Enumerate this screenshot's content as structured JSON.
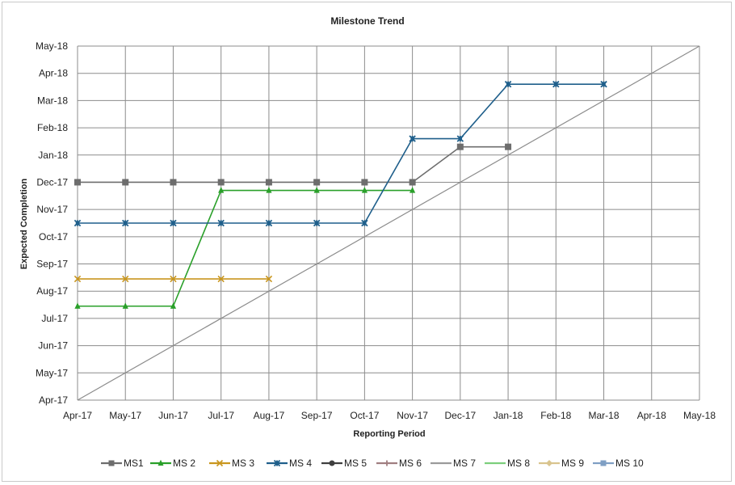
{
  "chart_data": {
    "type": "line",
    "title": "Milestone Trend",
    "xlabel": "Reporting Period",
    "ylabel": "Expected Completion",
    "x_ticks": [
      "Apr-17",
      "May-17",
      "Jun-17",
      "Jul-17",
      "Aug-17",
      "Sep-17",
      "Oct-17",
      "Nov-17",
      "Dec-17",
      "Jan-18",
      "Feb-18",
      "Mar-18",
      "Apr-18",
      "May-18"
    ],
    "y_ticks": [
      "Apr-17",
      "May-17",
      "Jun-17",
      "Jul-17",
      "Aug-17",
      "Sep-17",
      "Oct-17",
      "Nov-17",
      "Dec-17",
      "Jan-18",
      "Feb-18",
      "Mar-18",
      "Apr-18",
      "May-18"
    ],
    "xlim": [
      "Apr-17",
      "May-18"
    ],
    "ylim": [
      "Apr-17",
      "May-18"
    ],
    "grid": true,
    "diagonal_reference_line": true,
    "legend_position": "bottom",
    "series": [
      {
        "name": "MS1",
        "color": "#6d6d6d",
        "marker": "square",
        "x": [
          "Apr-17",
          "May-17",
          "Jun-17",
          "Jul-17",
          "Aug-17",
          "Sep-17",
          "Oct-17",
          "Nov-17",
          "Dec-17",
          "Jan-18"
        ],
        "y": [
          "Dec-17",
          "Dec-17",
          "Dec-17",
          "Dec-17",
          "Dec-17",
          "Dec-17",
          "Dec-17",
          "Dec-17",
          "Jan-18",
          "Jan-18"
        ],
        "y_month_index": [
          8,
          8,
          8,
          8,
          8,
          8,
          8,
          8,
          9.3,
          9.3
        ]
      },
      {
        "name": "MS 2",
        "color": "#2aa02a",
        "marker": "triangle",
        "x": [
          "Apr-17",
          "May-17",
          "Jun-17",
          "Jul-17",
          "Aug-17",
          "Sep-17",
          "Oct-17",
          "Nov-17"
        ],
        "y_month_index": [
          3.45,
          3.45,
          3.45,
          7.7,
          7.7,
          7.7,
          7.7,
          7.7
        ]
      },
      {
        "name": "MS 3",
        "color": "#c9961e",
        "marker": "x",
        "x": [
          "Apr-17",
          "May-17",
          "Jun-17",
          "Jul-17",
          "Aug-17"
        ],
        "y_month_index": [
          4.45,
          4.45,
          4.45,
          4.45,
          4.45
        ]
      },
      {
        "name": "MS 4",
        "color": "#1f5f8b",
        "marker": "star",
        "x": [
          "Apr-17",
          "May-17",
          "Jun-17",
          "Jul-17",
          "Aug-17",
          "Sep-17",
          "Oct-17",
          "Nov-17",
          "Dec-17",
          "Jan-18",
          "Feb-18",
          "Mar-18"
        ],
        "y_month_index": [
          6.5,
          6.5,
          6.5,
          6.5,
          6.5,
          6.5,
          6.5,
          9.6,
          9.6,
          11.6,
          11.6,
          11.6
        ]
      },
      {
        "name": "MS 5",
        "color": "#3f3f3f",
        "marker": "circle",
        "y_month_index": []
      },
      {
        "name": "MS 6",
        "color": "#a07e80",
        "marker": "plus",
        "y_month_index": []
      },
      {
        "name": "MS 7",
        "color": "#9a9a9a",
        "marker": "none",
        "y_month_index": []
      },
      {
        "name": "MS 8",
        "color": "#7ccf7c",
        "marker": "none",
        "y_month_index": []
      },
      {
        "name": "MS 9",
        "color": "#d9c48e",
        "marker": "diamond",
        "y_month_index": []
      },
      {
        "name": "MS 10",
        "color": "#7f9fc4",
        "marker": "square",
        "y_month_index": []
      }
    ]
  }
}
